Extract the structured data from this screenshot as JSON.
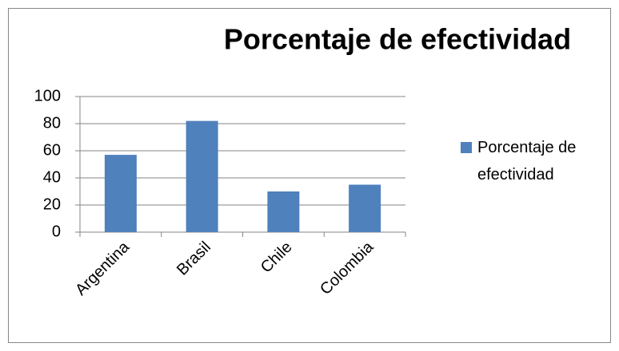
{
  "chart_data": {
    "type": "bar",
    "title": "Porcentaje de efectividad",
    "categories": [
      "Argentina",
      "Brasil",
      "Chile",
      "Colombia"
    ],
    "series": [
      {
        "name": "Porcentaje de efectividad",
        "color": "#4f81bd",
        "values": [
          57,
          82,
          30,
          35
        ]
      }
    ],
    "ylim": [
      0,
      100
    ],
    "yticks": [
      0,
      20,
      40,
      60,
      80,
      100
    ],
    "grid": true,
    "legend": "right"
  }
}
